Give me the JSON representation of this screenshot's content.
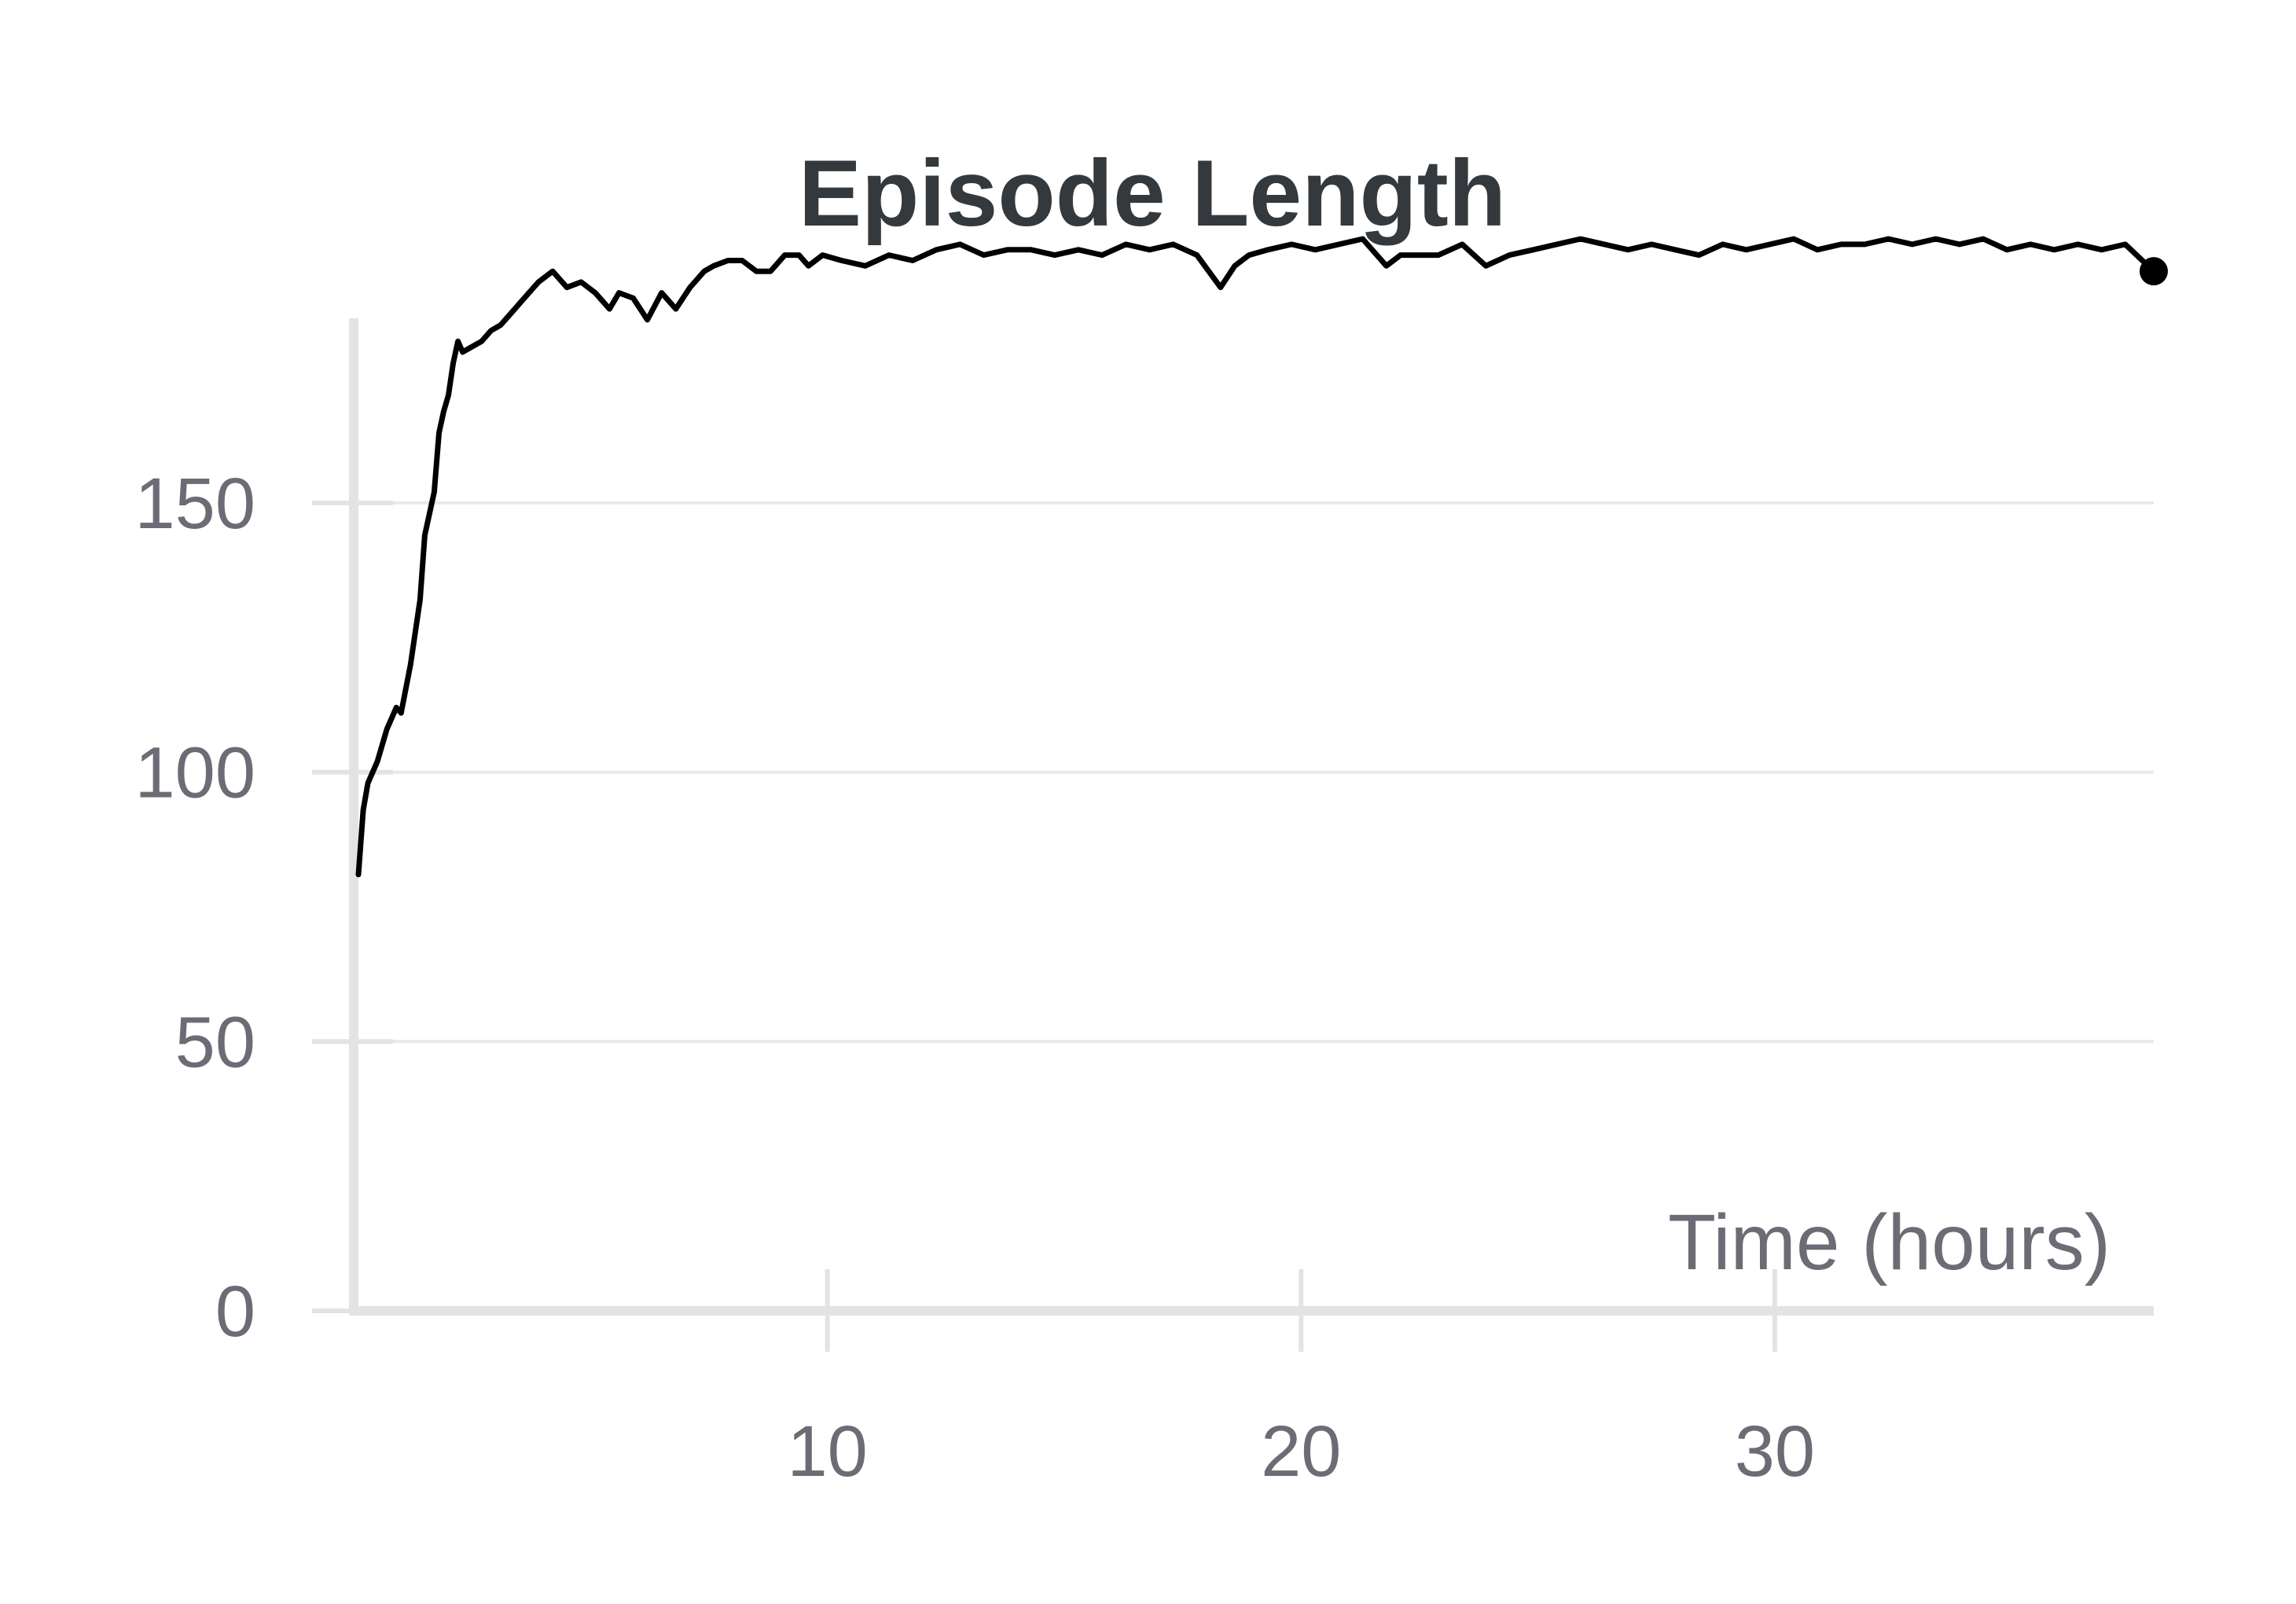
{
  "chart_data": {
    "type": "line",
    "title": "Episode Length",
    "xlabel": "Time (hours)",
    "ylabel": "",
    "xlim": [
      0,
      38
    ],
    "ylim": [
      0,
      185
    ],
    "xticks": [
      10,
      20,
      30
    ],
    "yticks": [
      0,
      50,
      100,
      150
    ],
    "grid": "horizontal",
    "colors": {
      "series": "#000000",
      "title": "#34393d",
      "ticks": "#6c6c76",
      "grid": "#e9e9e9",
      "axis": "#e3e3e3"
    },
    "series": [
      {
        "x": [
          0.1,
          0.2,
          0.3,
          0.5,
          0.7,
          0.9,
          1.0,
          1.2,
          1.4,
          1.5,
          1.6,
          1.7,
          1.8,
          1.9,
          2.0,
          2.1,
          2.2,
          2.3,
          2.5,
          2.7,
          2.9,
          3.1,
          3.3,
          3.6,
          3.9,
          4.2,
          4.5,
          4.8,
          5.1,
          5.4,
          5.6,
          5.9,
          6.2,
          6.5,
          6.8,
          7.1,
          7.4,
          7.6,
          7.9,
          8.2,
          8.5,
          8.8,
          9.1,
          9.4,
          9.6,
          9.9,
          10.3,
          10.8,
          11.3,
          11.8,
          12.3,
          12.8,
          13.3,
          13.8,
          14.3,
          14.8,
          15.3,
          15.8,
          16.3,
          16.8,
          17.3,
          17.8,
          18.3,
          18.6,
          18.9,
          19.3,
          19.8,
          20.3,
          20.8,
          21.3,
          21.8,
          22.1,
          22.4,
          22.9,
          23.4,
          23.9,
          24.4,
          24.9,
          25.4,
          25.9,
          26.4,
          26.9,
          27.4,
          27.9,
          28.4,
          28.9,
          29.4,
          29.9,
          30.4,
          30.9,
          31.4,
          31.9,
          32.4,
          32.9,
          33.4,
          33.9,
          34.4,
          34.9,
          35.4,
          35.9,
          36.4,
          36.9,
          37.4,
          38.0
        ],
        "y": [
          81,
          93,
          98,
          102,
          108,
          112,
          111,
          120,
          132,
          144,
          148,
          152,
          163,
          167,
          170,
          176,
          180,
          178,
          179,
          180,
          182,
          183,
          185,
          188,
          191,
          193,
          190,
          191,
          189,
          186,
          189,
          188,
          184,
          189,
          186,
          190,
          193,
          194,
          195,
          195,
          193,
          193,
          196,
          196,
          194,
          196,
          195,
          194,
          196,
          195,
          197,
          198,
          196,
          197,
          197,
          196,
          197,
          196,
          198,
          197,
          198,
          196,
          190,
          194,
          196,
          197,
          198,
          197,
          198,
          199,
          194,
          196,
          196,
          196,
          198,
          194,
          196,
          197,
          198,
          199,
          198,
          197,
          198,
          197,
          196,
          198,
          197,
          198,
          199,
          197,
          198,
          198,
          199,
          198,
          199,
          198,
          199,
          197,
          198,
          197,
          198,
          197,
          198,
          193
        ]
      }
    ]
  }
}
